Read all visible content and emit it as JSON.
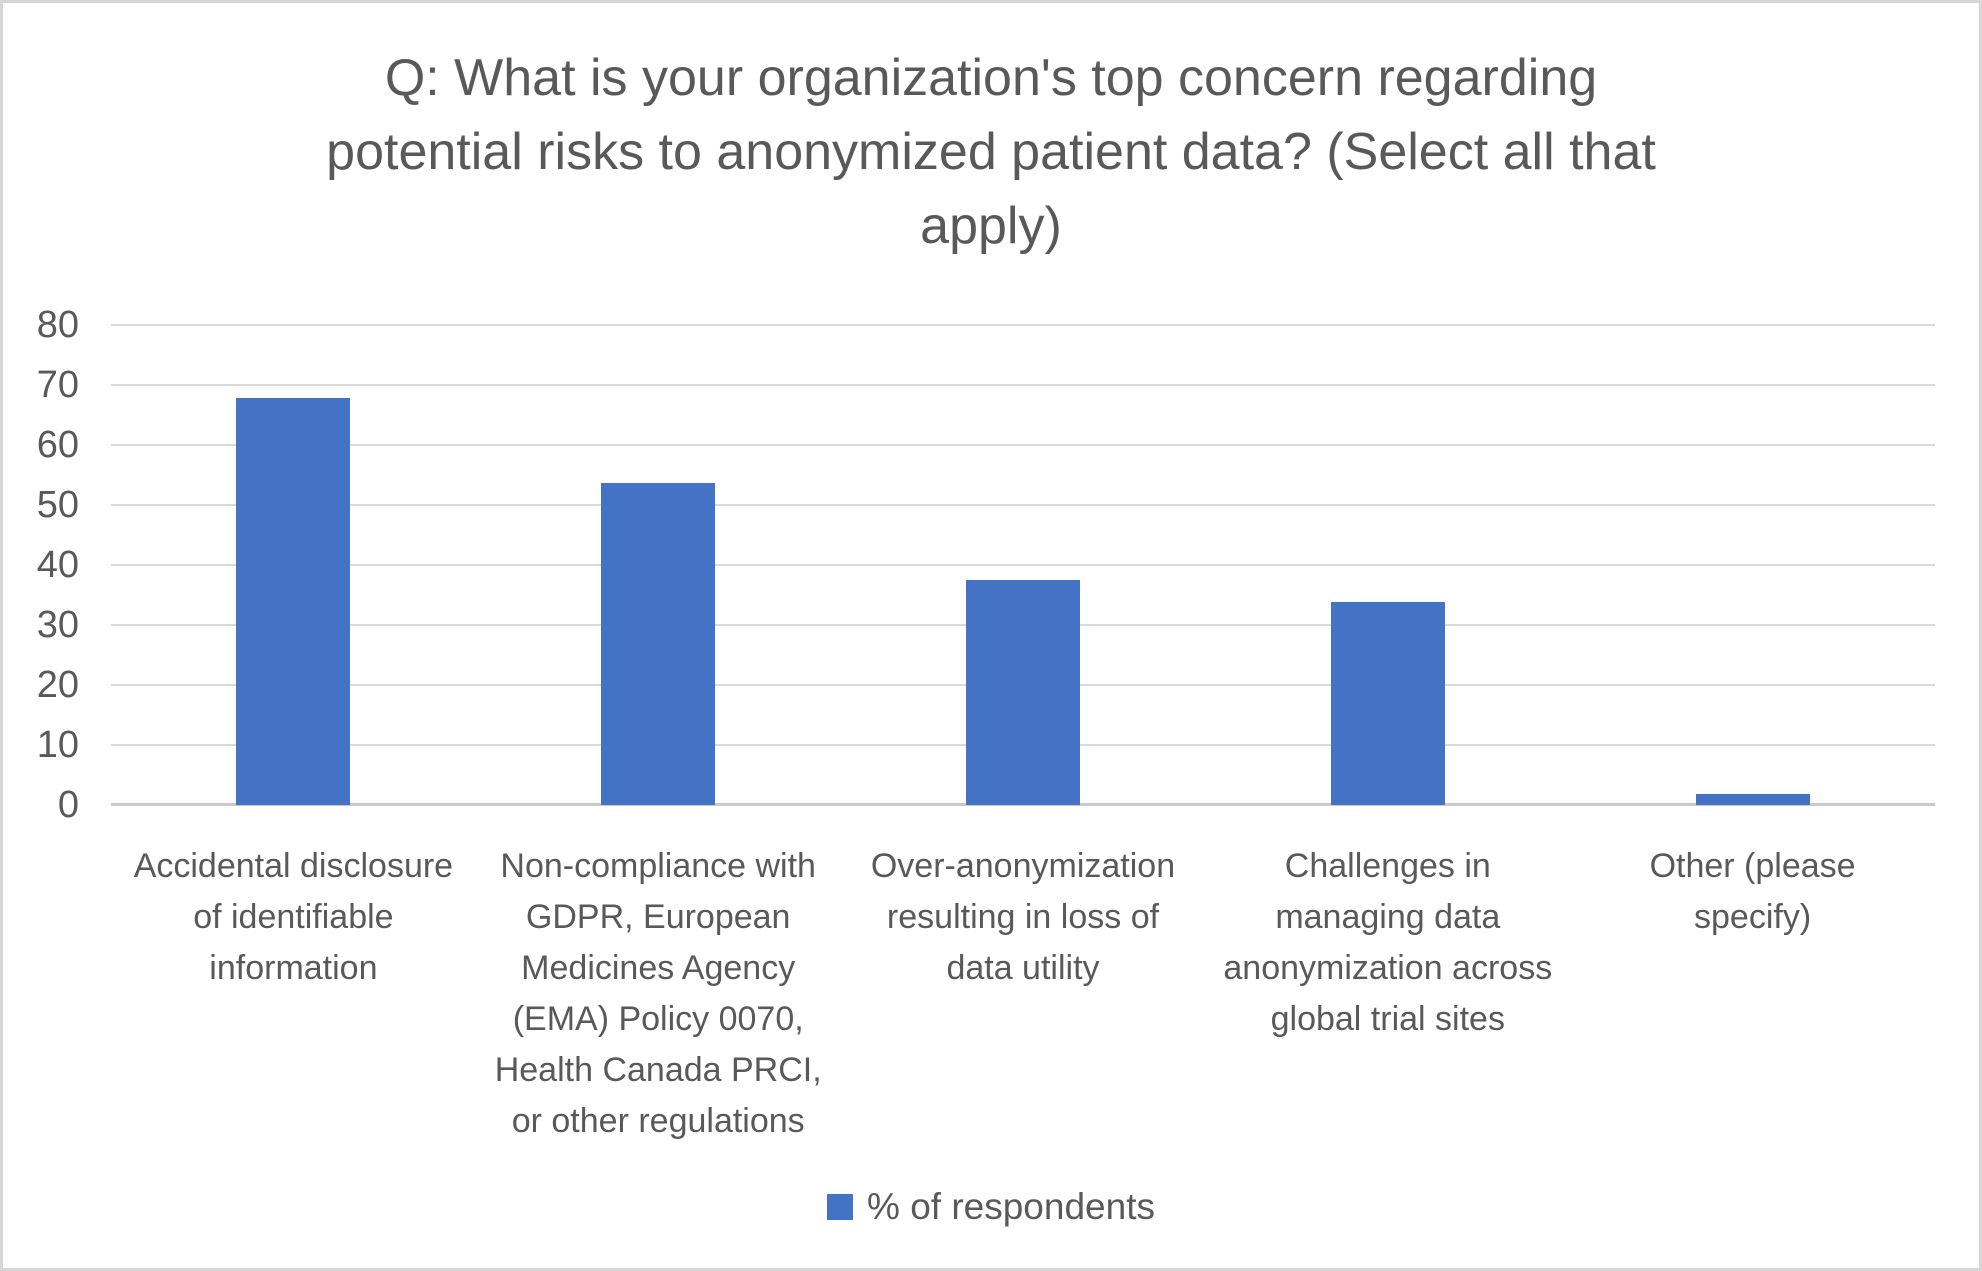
{
  "chart_data": {
    "type": "bar",
    "title": "Q: What is your organization's top concern regarding\npotential risks to anonymized patient data? (Select all that\napply)",
    "categories": [
      "Accidental disclosure\nof identifiable\ninformation",
      "Non-compliance with\nGDPR, European\nMedicines Agency\n(EMA) Policy 0070,\nHealth Canada PRCI,\nor other regulations",
      "Over-anonymization\nresulting in loss of\ndata utility",
      "Challenges in\nmanaging data\nanonymization across\nglobal trial sites",
      "Other (please\nspecify)"
    ],
    "series": [
      {
        "name": "% of respondents",
        "values": [
          67.9,
          53.6,
          37.5,
          33.9,
          1.8
        ]
      }
    ],
    "xlabel": "",
    "ylabel": "",
    "ylim": [
      0,
      80
    ],
    "y_ticks": [
      0,
      10,
      20,
      30,
      40,
      50,
      60,
      70,
      80
    ],
    "grid": true,
    "legend_position": "bottom",
    "colors": {
      "bar": "#4472C4",
      "text": "#595959",
      "gridline": "#D9D9D9",
      "axis_line": "#C9C9C9",
      "frame_border": "#D6D6D6"
    }
  }
}
